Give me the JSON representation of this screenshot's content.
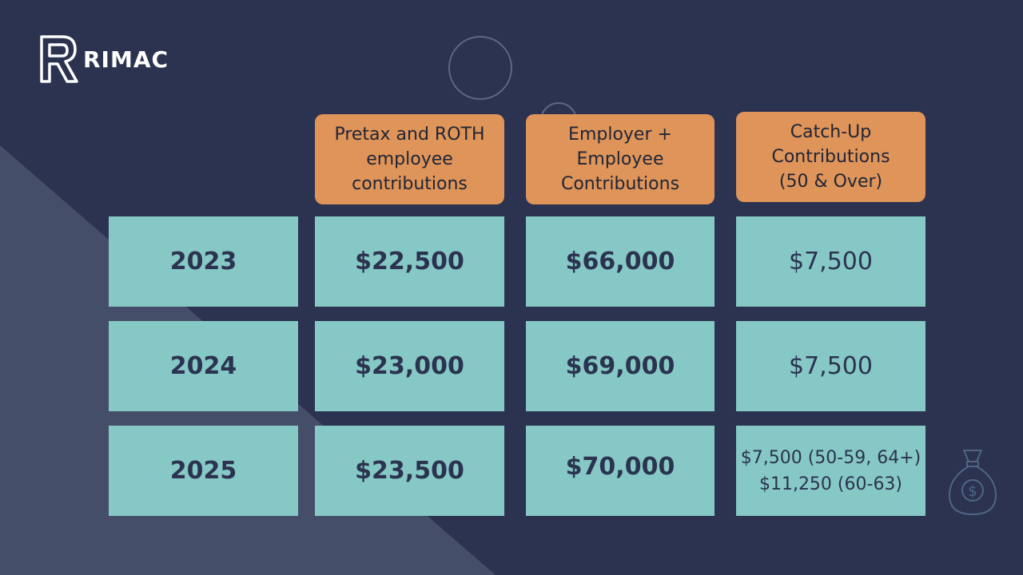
{
  "brand": {
    "name": "RIMAC",
    "logo_icon": "rimac-r-logo-icon"
  },
  "table": {
    "headers": [
      "Pretax and ROTH\nemployee\ncontributions",
      "Employer +\nEmployee\nContributions",
      "Catch-Up\nContributions\n(50 & Over)"
    ],
    "rows": [
      {
        "year": "2023",
        "pretax": "$22,500",
        "combined": "$66,000",
        "catchup": "$7,500"
      },
      {
        "year": "2024",
        "pretax": "$23,000",
        "combined": "$69,000",
        "catchup": "$7,500"
      },
      {
        "year": "2025",
        "pretax": "$23,500",
        "combined": "$70,000",
        "catchup": "$7,500 (50-59, 64+)\n$11,250 (60-63)"
      }
    ]
  },
  "decor": {
    "icon": "money-bag-icon"
  },
  "colors": {
    "background": "#2b3350",
    "header": "#df9459",
    "cell": "#86c8c5",
    "text_dark": "#2b3350"
  }
}
